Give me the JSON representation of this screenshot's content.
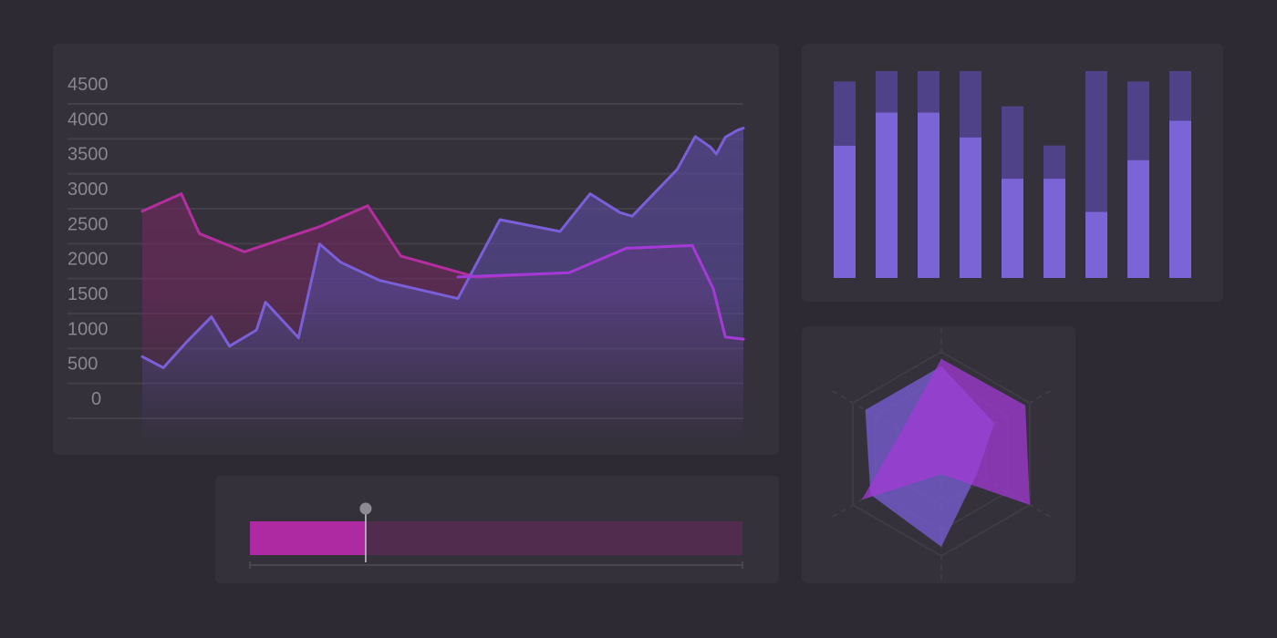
{
  "colors": {
    "background": "#2d2a33",
    "panel": "#34313a",
    "grid": "#44404a",
    "magenta": "#b52ea0",
    "magenta_fill": "#6d2a5e",
    "purple": "#7a5fd8",
    "purple_fill": "#5a4a9e",
    "violet": "#a13ad6",
    "bar_light": "#7b64d6",
    "bar_dark": "#4f4289",
    "progress_fill": "#ad2aa2",
    "progress_track": "#512c4f",
    "handle": "#8e8a93"
  },
  "chart_data": [
    {
      "type": "area",
      "yticks": [
        "4500",
        "4000",
        "3500",
        "3000",
        "2500",
        "2000",
        "1500",
        "1000",
        "500",
        "0"
      ],
      "ylim": [
        0,
        4500
      ],
      "xlim": [
        0,
        100
      ],
      "grid": true,
      "series": [
        {
          "color": "magenta",
          "x": [
            0,
            6.5,
            9.5,
            17,
            29.5,
            37.5,
            43,
            55.5,
            71,
            80.5,
            91.5,
            95,
            97,
            100
          ],
          "y": [
            2820,
            3070,
            2500,
            2240,
            2600,
            2900,
            2180,
            1880,
            1940,
            2290,
            2330,
            1710,
            1020,
            990
          ]
        },
        {
          "color": "purple",
          "x": [
            0,
            3.5,
            7.5,
            11.5,
            14.5,
            19,
            20.5,
            26,
            29.5,
            33,
            39.5,
            52.5,
            59.5,
            69.5,
            74.5,
            79.5,
            81.5,
            89,
            92,
            94.5,
            95.5,
            97,
            99,
            100
          ],
          "y": [
            740,
            580,
            960,
            1310,
            890,
            1120,
            1520,
            1010,
            2350,
            2090,
            1830,
            1570,
            2700,
            2530,
            3070,
            2800,
            2750,
            3420,
            3890,
            3740,
            3640,
            3880,
            3980,
            4010
          ]
        },
        {
          "color": "violet",
          "x": [
            52.5,
            71,
            80.5,
            91.5,
            95,
            97,
            100
          ],
          "y": [
            1880,
            1940,
            2290,
            2330,
            1710,
            1020,
            990
          ]
        }
      ]
    },
    {
      "type": "bar",
      "stacked": true,
      "ylim": [
        0,
        100
      ],
      "series": [
        {
          "color": "bar_light",
          "values": [
            64,
            80,
            80,
            68,
            48,
            48,
            32,
            57,
            76
          ]
        },
        {
          "color": "bar_dark",
          "values": [
            31,
            20,
            20,
            32,
            35,
            16,
            68,
            38,
            24
          ]
        }
      ]
    },
    {
      "type": "radar",
      "axes": 6,
      "rlim": [
        0,
        100
      ],
      "rings": 4,
      "series": [
        {
          "color": "purple",
          "values": [
            86,
            60,
            40,
            91,
            80,
            86
          ]
        },
        {
          "color": "violet",
          "values": [
            93,
            95,
            100,
            20,
            90,
            45
          ]
        }
      ]
    },
    {
      "type": "progress",
      "value": 0.235
    }
  ]
}
